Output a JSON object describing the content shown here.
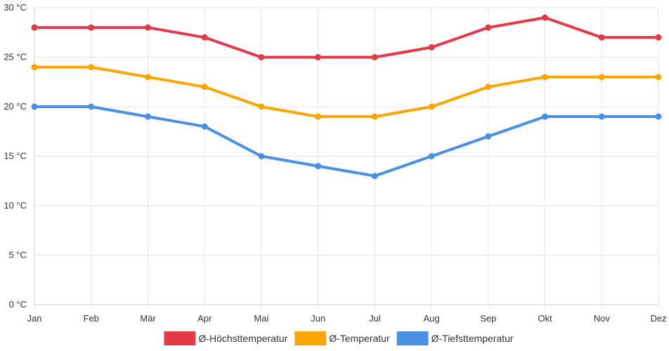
{
  "chart_data": {
    "type": "line",
    "title": "",
    "xlabel": "",
    "ylabel": "",
    "unit": "°C",
    "ylim": [
      0,
      30
    ],
    "yticks": [
      0,
      5,
      10,
      15,
      20,
      25,
      30
    ],
    "ytick_labels": [
      "0 °C",
      "5 °C",
      "10 °C",
      "15 °C",
      "20 °C",
      "25 °C",
      "30 °C"
    ],
    "grid": true,
    "legend_position": "bottom",
    "categories": [
      "Jan",
      "Feb",
      "Mär",
      "Apr",
      "Mai",
      "Jun",
      "Jul",
      "Aug",
      "Sep",
      "Okt",
      "Nov",
      "Dez"
    ],
    "series": [
      {
        "key": "max",
        "name": "Ø-Höchsttemperatur",
        "color": "#e23b48",
        "values": [
          28,
          28,
          28,
          27,
          25,
          25,
          25,
          26,
          28,
          29,
          27,
          27
        ]
      },
      {
        "key": "avg",
        "name": "Ø-Temperatur",
        "color": "#f9a602",
        "values": [
          24,
          24,
          23,
          22,
          20,
          19,
          19,
          20,
          22,
          23,
          23,
          23
        ]
      },
      {
        "key": "min",
        "name": "Ø-Tiefsttemperatur",
        "color": "#4a90e2",
        "values": [
          20,
          20,
          19,
          18,
          15,
          14,
          13,
          15,
          17,
          19,
          19,
          19
        ]
      }
    ]
  }
}
